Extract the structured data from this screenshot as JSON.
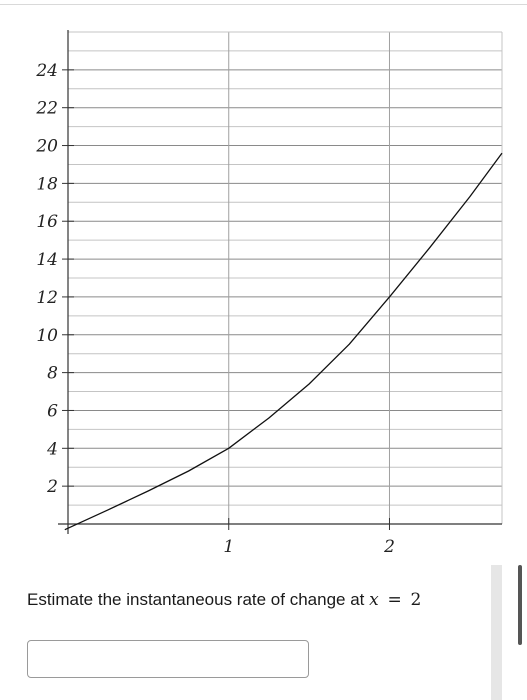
{
  "chart_data": {
    "type": "line",
    "title": "",
    "xlabel": "",
    "ylabel": "",
    "xlim": [
      0,
      2.7
    ],
    "ylim": [
      0,
      26
    ],
    "x_ticks": [
      1,
      2
    ],
    "x_tick_labels": [
      "1",
      "2"
    ],
    "y_ticks": [
      2,
      4,
      6,
      8,
      10,
      12,
      14,
      16,
      18,
      20,
      22,
      24
    ],
    "y_tick_labels": [
      "2",
      "4",
      "6",
      "8",
      "10",
      "12",
      "14",
      "16",
      "18",
      "20",
      "22",
      "24"
    ],
    "grid": true,
    "series": [
      {
        "x": [
          -0.02,
          0.25,
          0.5,
          0.75,
          1.0,
          1.25,
          1.5,
          1.75,
          2.0,
          2.25,
          2.5,
          2.7
        ],
        "y": [
          -0.3,
          0.75,
          1.75,
          2.8,
          4.0,
          5.6,
          7.4,
          9.5,
          12.0,
          14.6,
          17.3,
          19.6
        ]
      }
    ]
  },
  "question": {
    "text_before": "Estimate the instantaneous rate of change at",
    "variable": "x",
    "operator": "=",
    "value": "2"
  },
  "answer": {
    "value": "",
    "placeholder": ""
  }
}
